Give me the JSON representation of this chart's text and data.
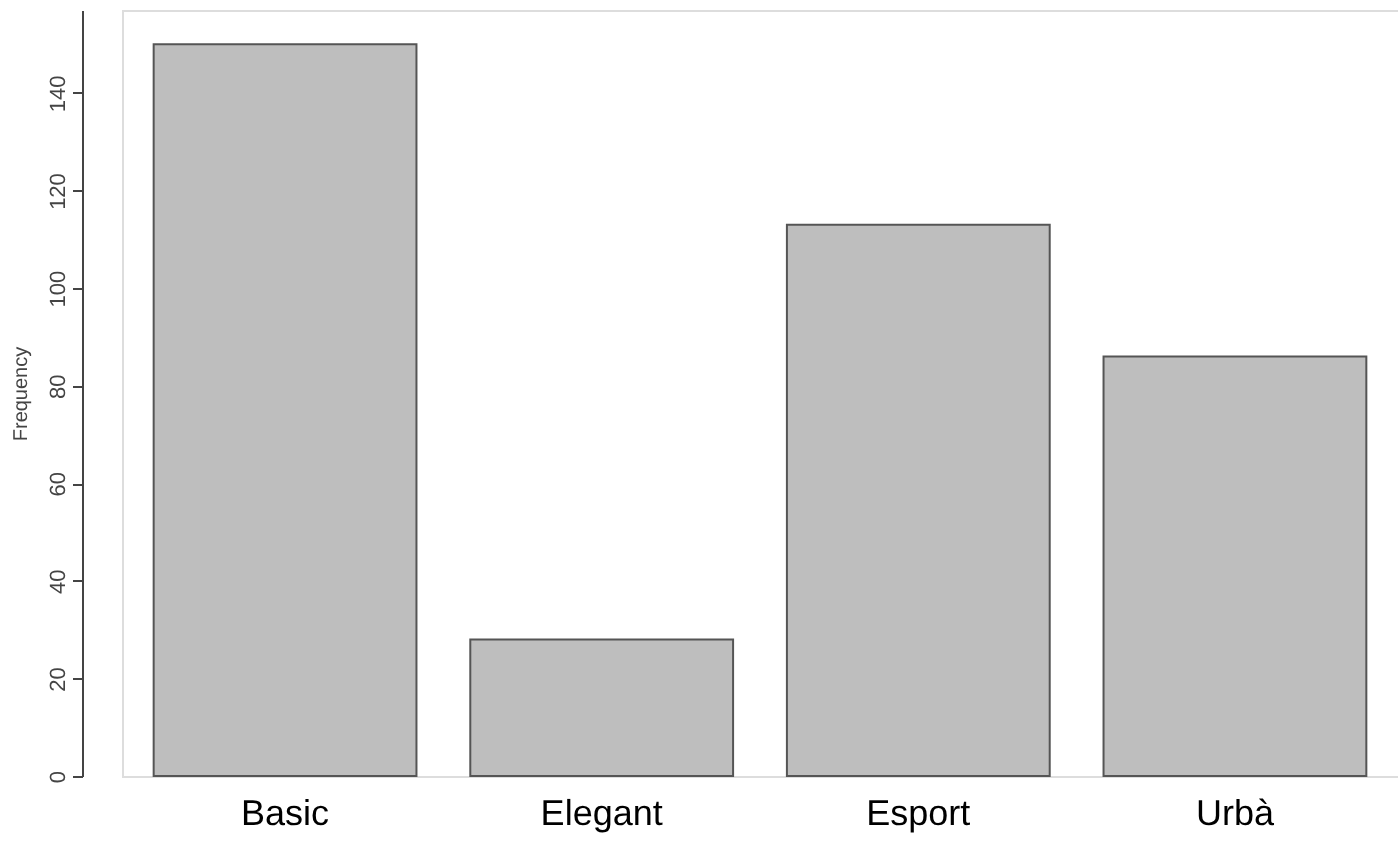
{
  "chart_data": {
    "type": "bar",
    "ylabel": "Frequency",
    "categories": [
      "Basic",
      "Elegant",
      "Esport",
      "Urbà"
    ],
    "values": [
      150,
      28,
      113,
      86
    ],
    "color": "#bebebe",
    "ylim": [
      0,
      157
    ],
    "yticks": [
      0,
      20,
      40,
      60,
      80,
      100,
      120,
      140
    ],
    "grid": false
  }
}
